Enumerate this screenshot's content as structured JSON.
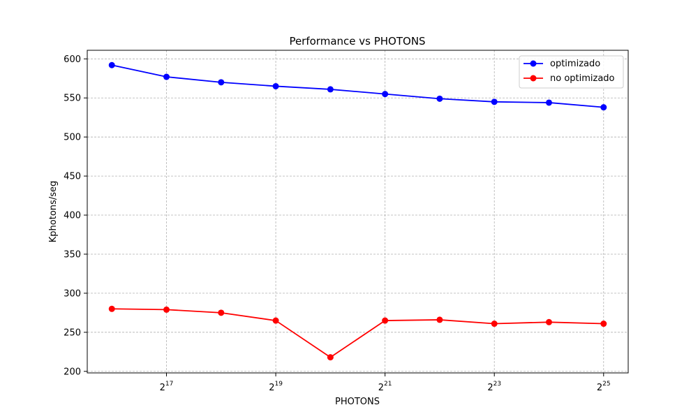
{
  "chart_data": {
    "type": "line",
    "title": "Performance vs PHOTONS",
    "xlabel": "PHOTONS",
    "ylabel": "Kphotons/seg",
    "x_scale": "log2",
    "x": [
      "2^16",
      "2^17",
      "2^18",
      "2^19",
      "2^20",
      "2^21",
      "2^22",
      "2^23",
      "2^24",
      "2^25"
    ],
    "x_exponents": [
      16,
      17,
      18,
      19,
      20,
      21,
      22,
      23,
      24,
      25
    ],
    "xticks": [
      {
        "base": "2",
        "exp": "17",
        "value": 17
      },
      {
        "base": "2",
        "exp": "19",
        "value": 19
      },
      {
        "base": "2",
        "exp": "21",
        "value": 21
      },
      {
        "base": "2",
        "exp": "23",
        "value": 23
      },
      {
        "base": "2",
        "exp": "25",
        "value": 25
      }
    ],
    "xlim_exp": [
      15.55,
      25.45
    ],
    "ylim": [
      198,
      611
    ],
    "yticks": [
      "200",
      "250",
      "300",
      "350",
      "400",
      "450",
      "500",
      "550",
      "600"
    ],
    "grid": true,
    "legend_position": "top-right",
    "series": [
      {
        "name": "optimizado",
        "color": "#0000ff",
        "values": [
          592,
          577,
          570,
          565,
          561,
          555,
          549,
          545,
          544,
          538
        ]
      },
      {
        "name": "no optimizado",
        "color": "#ff0000",
        "values": [
          280,
          279,
          275,
          265,
          218,
          265,
          266,
          261,
          263,
          261
        ]
      }
    ]
  }
}
